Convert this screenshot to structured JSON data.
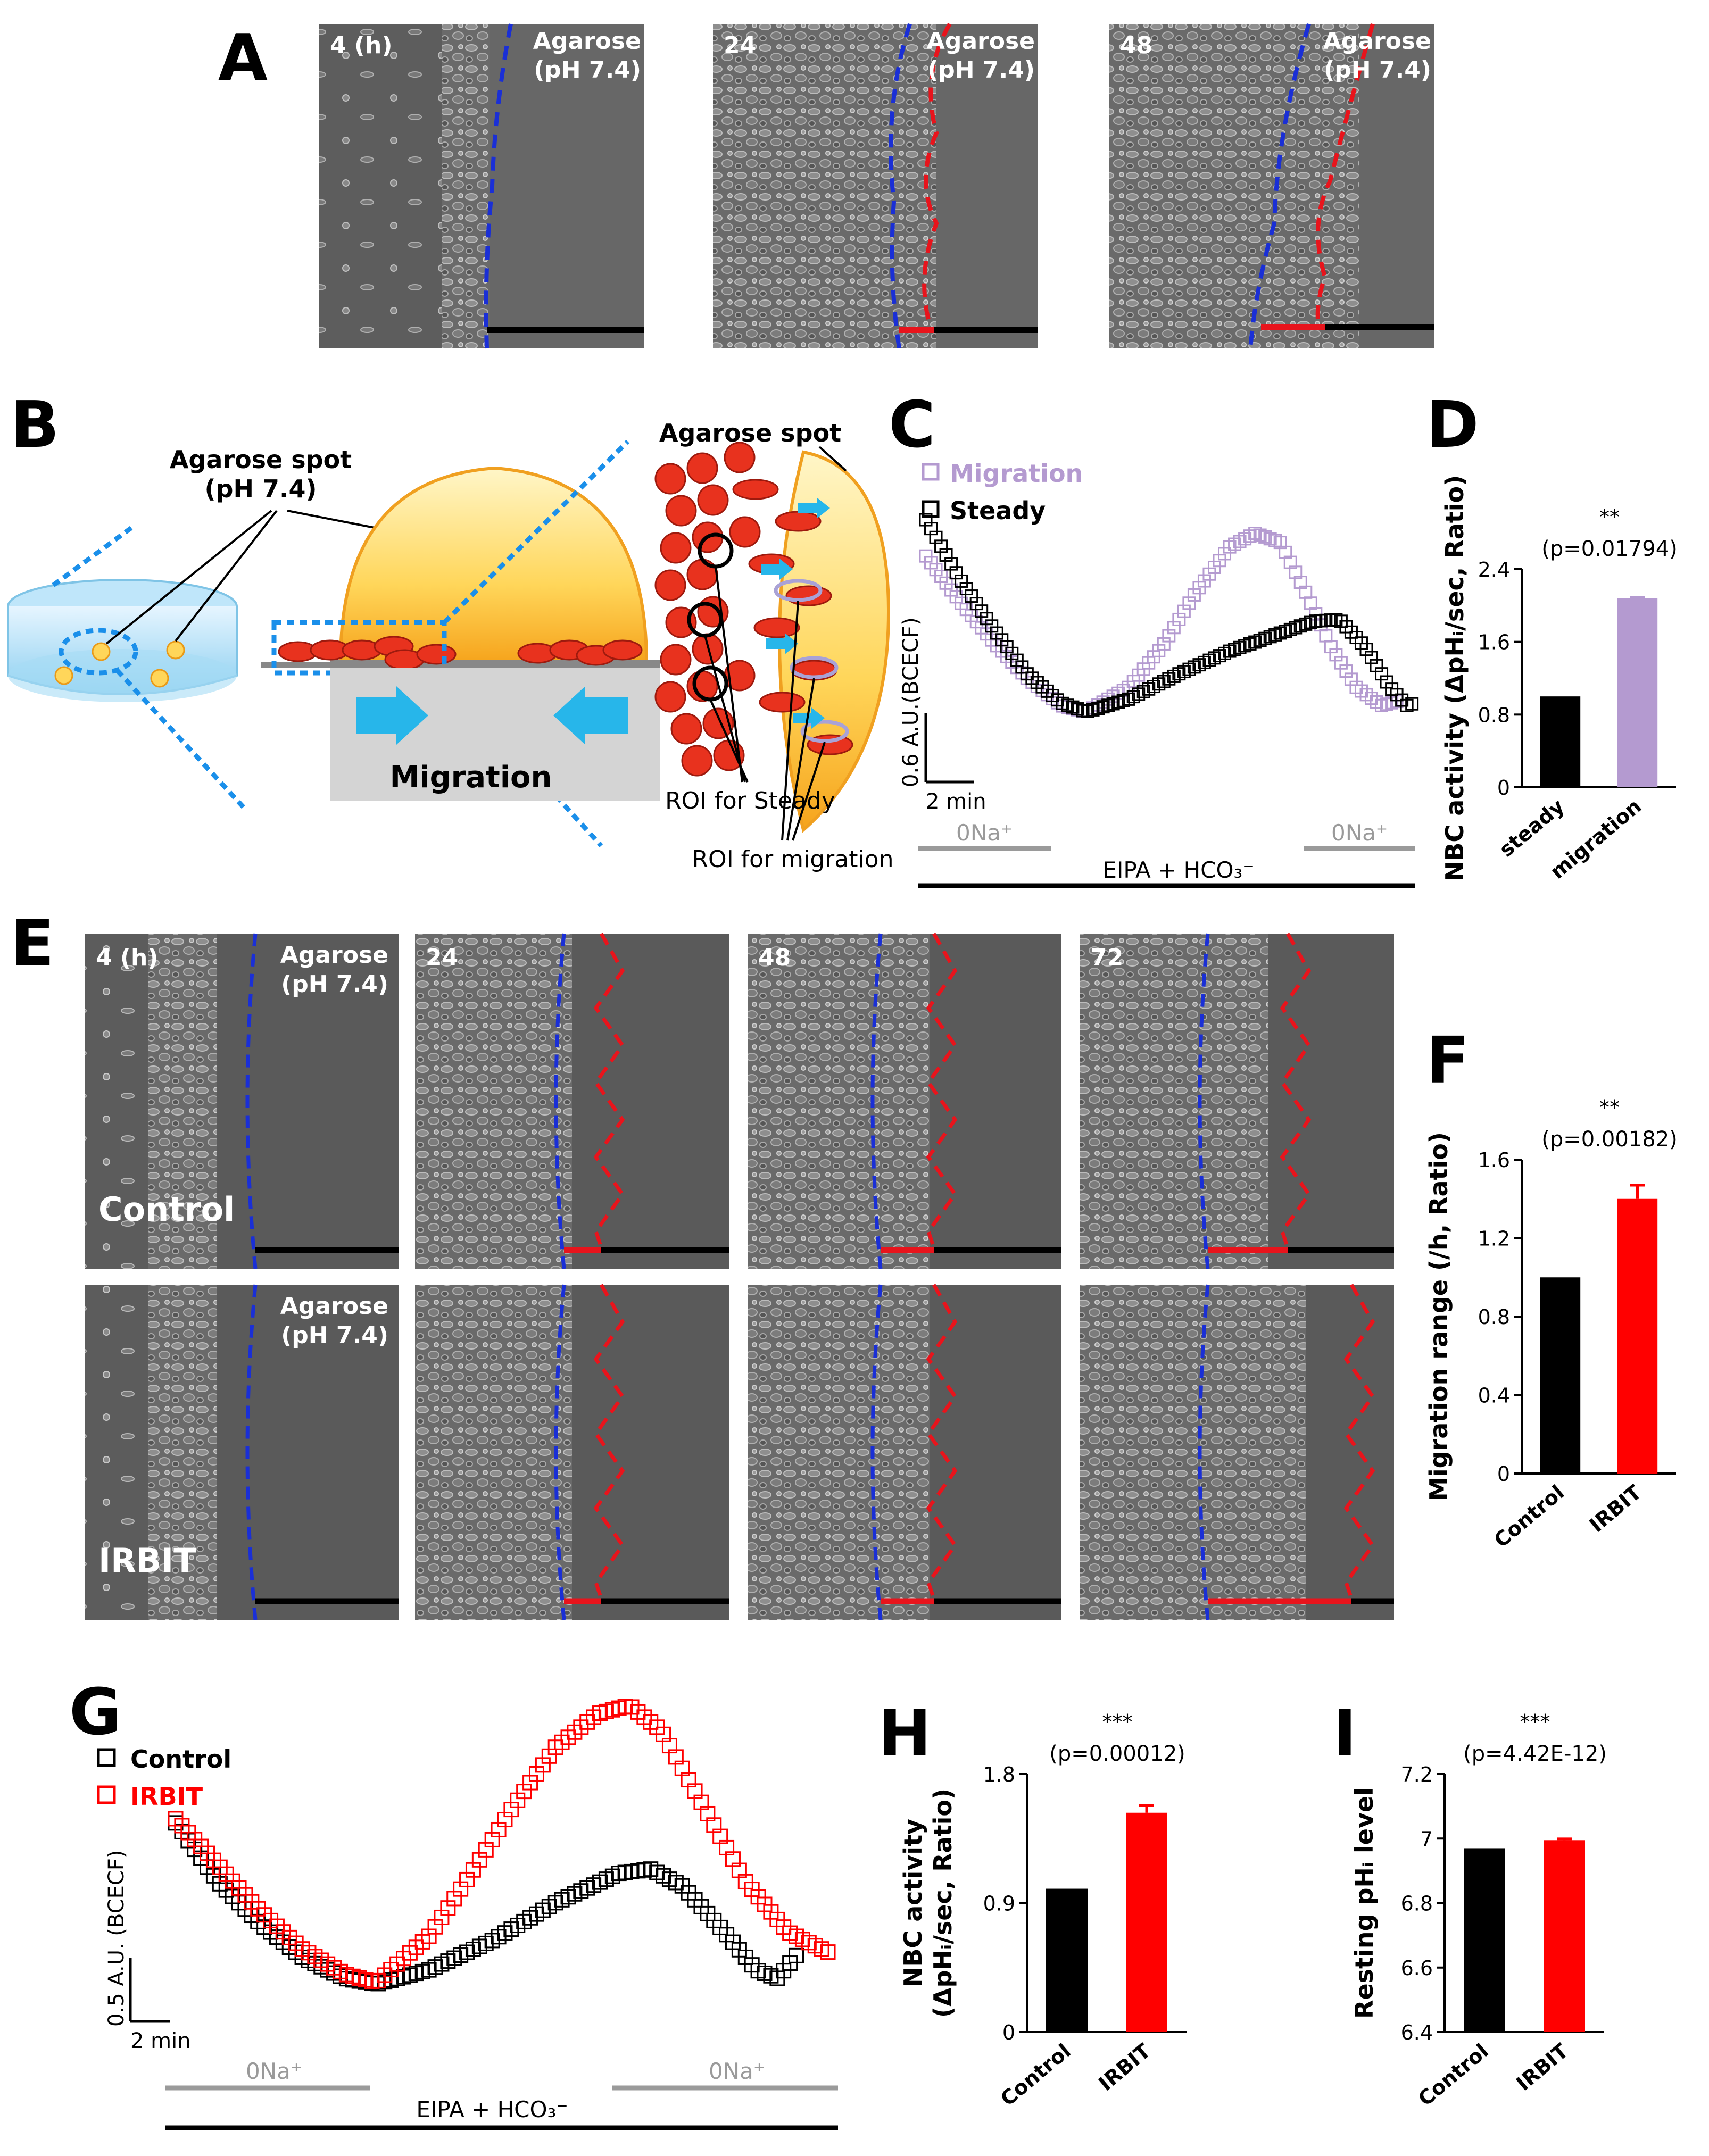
{
  "panel_letters": {
    "A": "A",
    "B": "B",
    "C": "C",
    "D": "D",
    "E": "E",
    "F": "F",
    "G": "G",
    "H": "H",
    "I": "I"
  },
  "panel_a": {
    "timepoints": [
      "4 (h)",
      "24",
      "48"
    ],
    "agarose_line1": "Agarose",
    "agarose_line2": "(pH 7.4)"
  },
  "panel_b": {
    "spot_label_line1": "Agarose spot",
    "spot_label_line2": "(pH 7.4)",
    "migration": "Migration",
    "agarose_spot": "Agarose spot",
    "roi_steady": "ROI for Steady",
    "roi_migration": "ROI for migration"
  },
  "panel_e": {
    "timepoints": [
      "4 (h)",
      "24",
      "48",
      "72"
    ],
    "agarose_line1": "Agarose",
    "agarose_line2": "(pH 7.4)",
    "row_labels": [
      "Control",
      "IRBIT"
    ]
  },
  "colors": {
    "blue_line": "#1a2fd6",
    "red_line": "#e8141c",
    "migration_purple": "#b49ad0",
    "control_black": "#000000",
    "irbit_red": "#ff0000",
    "bar_gray_text": "#9a9a9a"
  },
  "chart_data": [
    {
      "id": "C",
      "type": "scatter",
      "series": [
        {
          "name": "Migration",
          "color": "#b49ad0",
          "points": [
            [
              0,
              2.2
            ],
            [
              2,
              1.7
            ],
            [
              4,
              1.25
            ],
            [
              6,
              0.85
            ],
            [
              8,
              0.55
            ],
            [
              9.5,
              0.48
            ],
            [
              12,
              0.75
            ],
            [
              14,
              1.2
            ],
            [
              16,
              1.8
            ],
            [
              18,
              2.3
            ],
            [
              19.5,
              2.45
            ],
            [
              21,
              2.35
            ],
            [
              22.5,
              1.8
            ],
            [
              24,
              1.2
            ],
            [
              25.5,
              0.75
            ],
            [
              27,
              0.55
            ],
            [
              28,
              0.6
            ]
          ]
        },
        {
          "name": "Steady",
          "color": "#000000",
          "points": [
            [
              0,
              2.6
            ],
            [
              2,
              1.95
            ],
            [
              4,
              1.4
            ],
            [
              6,
              0.9
            ],
            [
              8,
              0.58
            ],
            [
              9.5,
              0.48
            ],
            [
              12,
              0.62
            ],
            [
              15,
              0.9
            ],
            [
              18,
              1.15
            ],
            [
              21,
              1.35
            ],
            [
              23,
              1.48
            ],
            [
              24.5,
              1.5
            ],
            [
              26,
              1.2
            ],
            [
              27.5,
              0.75
            ],
            [
              28.5,
              0.55
            ],
            [
              29,
              0.58
            ]
          ]
        }
      ],
      "scalebar_y": "0.6 A.U.(BCECF)",
      "scalebar_x": "2 min",
      "protocol": {
        "left": "0Na⁺",
        "middle": "EIPA + HCO₃⁻",
        "right": "0Na⁺"
      }
    },
    {
      "id": "D",
      "type": "bar",
      "ylabel": "NBC activity (ΔpHᵢ/sec, Ratio)",
      "categories": [
        "steady",
        "migration"
      ],
      "values": [
        1.0,
        2.08
      ],
      "errors": [
        0,
        0.01
      ],
      "colors": [
        "#000000",
        "#b49ad0"
      ],
      "ylim": [
        0,
        2.4
      ],
      "yticks": [
        "0",
        "0.8",
        "1.6",
        "2.4"
      ],
      "significance": "**",
      "pvalue": "(p=0.01794)"
    },
    {
      "id": "F",
      "type": "bar",
      "ylabel": "Migration range (/h, Ratio)",
      "categories": [
        "Control",
        "IRBIT"
      ],
      "values": [
        1.0,
        1.4
      ],
      "errors": [
        0,
        0.07
      ],
      "colors": [
        "#000000",
        "#ff0000"
      ],
      "ylim": [
        0,
        1.6
      ],
      "yticks": [
        "0",
        "0.4",
        "0.8",
        "1.2",
        "1.6"
      ],
      "significance": "**",
      "pvalue": "(p=0.00182)"
    },
    {
      "id": "G",
      "type": "scatter",
      "series": [
        {
          "name": "Control",
          "color": "#000000",
          "points": [
            [
              0,
              2.3
            ],
            [
              2,
              1.6
            ],
            [
              4,
              1.1
            ],
            [
              6,
              0.7
            ],
            [
              8,
              0.45
            ],
            [
              9.5,
              0.38
            ],
            [
              12,
              0.55
            ],
            [
              15,
              0.9
            ],
            [
              18,
              1.35
            ],
            [
              21,
              1.7
            ],
            [
              22.5,
              1.75
            ],
            [
              24,
              1.55
            ],
            [
              26,
              1.0
            ],
            [
              27.5,
              0.55
            ],
            [
              28.5,
              0.45
            ],
            [
              29.5,
              0.75
            ]
          ]
        },
        {
          "name": "IRBIT",
          "color": "#ff0000",
          "points": [
            [
              0,
              2.35
            ],
            [
              2,
              1.8
            ],
            [
              4,
              1.25
            ],
            [
              6,
              0.8
            ],
            [
              8,
              0.5
            ],
            [
              9.5,
              0.4
            ],
            [
              12,
              0.95
            ],
            [
              14,
              1.7
            ],
            [
              16,
              2.5
            ],
            [
              18,
              3.2
            ],
            [
              20,
              3.6
            ],
            [
              21.5,
              3.7
            ],
            [
              23,
              3.4
            ],
            [
              25,
              2.5
            ],
            [
              27,
              1.6
            ],
            [
              29,
              1.0
            ],
            [
              31,
              0.75
            ]
          ]
        }
      ],
      "scalebar_y": "0.5 A.U. (BCECF)",
      "scalebar_x": "2 min",
      "protocol": {
        "left": "0Na⁺",
        "middle": "EIPA + HCO₃⁻",
        "right": "0Na⁺"
      }
    },
    {
      "id": "H",
      "type": "bar",
      "ylabel_line1": "NBC activity",
      "ylabel_line2": "(ΔpHᵢ/sec, Ratio)",
      "categories": [
        "Control",
        "IRBIT"
      ],
      "values": [
        1.0,
        1.53
      ],
      "errors": [
        0,
        0.05
      ],
      "colors": [
        "#000000",
        "#ff0000"
      ],
      "ylim": [
        0,
        1.8
      ],
      "yticks": [
        "0",
        "0.9",
        "1.8"
      ],
      "significance": "***",
      "pvalue": "(p=0.00012)"
    },
    {
      "id": "I",
      "type": "bar",
      "ylabel": "Resting pHᵢ level",
      "categories": [
        "Control",
        "IRBIT"
      ],
      "values": [
        6.97,
        6.995
      ],
      "errors": [
        0,
        0.004
      ],
      "colors": [
        "#000000",
        "#ff0000"
      ],
      "ylim": [
        6.4,
        7.2
      ],
      "yticks": [
        "6.4",
        "6.6",
        "6.8",
        "7",
        "7.2"
      ],
      "significance": "***",
      "pvalue": "(p=4.42E-12)"
    }
  ]
}
